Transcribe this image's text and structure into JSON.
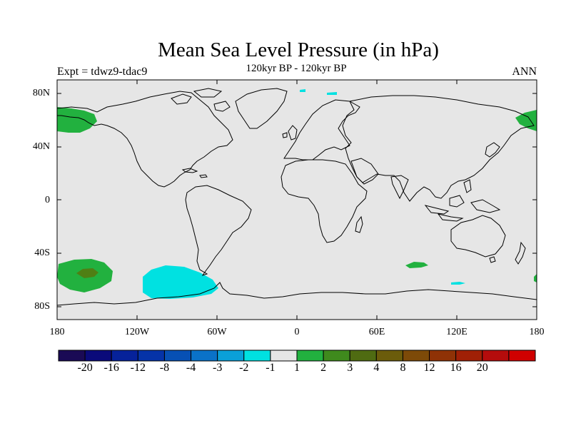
{
  "map": {
    "title": "Mean Sea Level Pressure (in hPa)",
    "subtitle": "120kyr BP - 120kyr BP",
    "experiment": "Expt = tdwz9-tdac9",
    "season": "ANN",
    "lat_ticks": [
      "80N",
      "40N",
      "0",
      "40S",
      "80S"
    ],
    "lon_ticks": [
      "180",
      "120W",
      "60W",
      "0",
      "60E",
      "120E",
      "180"
    ],
    "colors": {
      "background": "#e6e6e6",
      "coast": "#000000",
      "cyan": "#00e1e1",
      "green": "#22b13f",
      "dark_green": "#4f7f14"
    }
  },
  "colorbar": {
    "colors": [
      "#1a0a55",
      "#0a0a7a",
      "#06229a",
      "#0533a8",
      "#0750b4",
      "#0a72c8",
      "#0aa0d8",
      "#00e1e1",
      "#e6e6e6",
      "#22b13f",
      "#3f8a1d",
      "#4f6b12",
      "#6b5c0b",
      "#7d4a08",
      "#8f3206",
      "#a02006",
      "#b50c0c",
      "#d00000"
    ],
    "labels": [
      "-20",
      "-16",
      "-12",
      "-8",
      "-4",
      "-3",
      "-2",
      "-1",
      "1",
      "2",
      "3",
      "4",
      "8",
      "12",
      "16",
      "20"
    ]
  }
}
